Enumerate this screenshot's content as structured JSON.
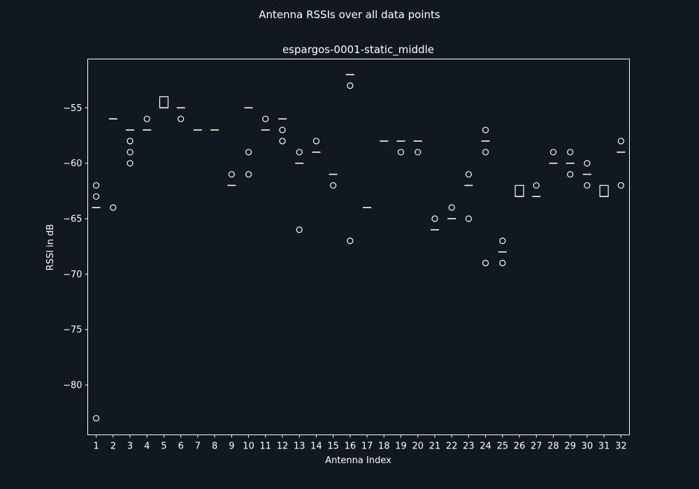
{
  "figure": {
    "suptitle": "Antenna RSSIs over all data points",
    "background_color": "#111820",
    "foreground_color": "#ffffff",
    "median_color": "#ffffcc"
  },
  "chart_data": {
    "type": "box",
    "title": "espargos-0001-static_middle",
    "xlabel": "Antenna Index",
    "ylabel": "RSSI in dB",
    "ylim": [
      -84.5,
      -50.6
    ],
    "yticks": [
      -80,
      -75,
      -70,
      -65,
      -60,
      -55
    ],
    "grid": false,
    "categories": [
      "1",
      "2",
      "3",
      "4",
      "5",
      "6",
      "7",
      "8",
      "9",
      "10",
      "11",
      "12",
      "13",
      "14",
      "15",
      "16",
      "17",
      "18",
      "19",
      "20",
      "21",
      "22",
      "23",
      "24",
      "25",
      "26",
      "27",
      "28",
      "29",
      "30",
      "31",
      "32"
    ],
    "boxes": [
      {
        "antenna": "1",
        "q1": -64,
        "median": -64,
        "q3": -64,
        "outliers": [
          -62,
          -63,
          -83
        ]
      },
      {
        "antenna": "2",
        "q1": -56,
        "median": -56,
        "q3": -56,
        "outliers": [
          -64
        ]
      },
      {
        "antenna": "3",
        "q1": -57,
        "median": -57,
        "q3": -57,
        "outliers": [
          -58,
          -59,
          -60
        ]
      },
      {
        "antenna": "4",
        "q1": -57,
        "median": -57,
        "q3": -57,
        "outliers": [
          -56
        ]
      },
      {
        "antenna": "5",
        "q1": -55,
        "median": -55,
        "q3": -54,
        "outliers": []
      },
      {
        "antenna": "6",
        "q1": -55,
        "median": -55,
        "q3": -55,
        "outliers": [
          -56
        ]
      },
      {
        "antenna": "7",
        "q1": -57,
        "median": -57,
        "q3": -57,
        "outliers": []
      },
      {
        "antenna": "8",
        "q1": -57,
        "median": -57,
        "q3": -57,
        "outliers": []
      },
      {
        "antenna": "9",
        "q1": -62,
        "median": -62,
        "q3": -62,
        "outliers": [
          -61
        ]
      },
      {
        "antenna": "10",
        "q1": -55,
        "median": -55,
        "q3": -55,
        "outliers": [
          -59,
          -61
        ]
      },
      {
        "antenna": "11",
        "q1": -57,
        "median": -57,
        "q3": -57,
        "outliers": [
          -56
        ]
      },
      {
        "antenna": "12",
        "q1": -56,
        "median": -56,
        "q3": -56,
        "outliers": [
          -57,
          -58
        ]
      },
      {
        "antenna": "13",
        "q1": -60,
        "median": -60,
        "q3": -60,
        "outliers": [
          -59,
          -66
        ]
      },
      {
        "antenna": "14",
        "q1": -59,
        "median": -59,
        "q3": -59,
        "outliers": [
          -58
        ]
      },
      {
        "antenna": "15",
        "q1": -61,
        "median": -61,
        "q3": -61,
        "outliers": [
          -62
        ]
      },
      {
        "antenna": "16",
        "q1": -52,
        "median": -52,
        "q3": -52,
        "outliers": [
          -53,
          -67
        ]
      },
      {
        "antenna": "17",
        "q1": -64,
        "median": -64,
        "q3": -64,
        "outliers": []
      },
      {
        "antenna": "18",
        "q1": -58,
        "median": -58,
        "q3": -58,
        "outliers": []
      },
      {
        "antenna": "19",
        "q1": -58,
        "median": -58,
        "q3": -58,
        "outliers": [
          -59
        ]
      },
      {
        "antenna": "20",
        "q1": -58,
        "median": -58,
        "q3": -58,
        "outliers": [
          -59
        ]
      },
      {
        "antenna": "21",
        "q1": -66,
        "median": -66,
        "q3": -66,
        "outliers": [
          -65
        ]
      },
      {
        "antenna": "22",
        "q1": -65,
        "median": -65,
        "q3": -65,
        "outliers": [
          -64
        ]
      },
      {
        "antenna": "23",
        "q1": -62,
        "median": -62,
        "q3": -62,
        "outliers": [
          -61,
          -65
        ]
      },
      {
        "antenna": "24",
        "q1": -58,
        "median": -58,
        "q3": -58,
        "outliers": [
          -57,
          -59,
          -69
        ]
      },
      {
        "antenna": "25",
        "q1": -68,
        "median": -68,
        "q3": -68,
        "outliers": [
          -67,
          -69
        ]
      },
      {
        "antenna": "26",
        "q1": -63,
        "median": -63,
        "q3": -62,
        "outliers": []
      },
      {
        "antenna": "27",
        "q1": -63,
        "median": -63,
        "q3": -63,
        "outliers": [
          -62
        ]
      },
      {
        "antenna": "28",
        "q1": -60,
        "median": -60,
        "q3": -60,
        "outliers": [
          -59
        ]
      },
      {
        "antenna": "29",
        "q1": -60,
        "median": -60,
        "q3": -60,
        "outliers": [
          -59,
          -61
        ]
      },
      {
        "antenna": "30",
        "q1": -61,
        "median": -61,
        "q3": -61,
        "outliers": [
          -60,
          -62
        ]
      },
      {
        "antenna": "31",
        "q1": -63,
        "median": -63,
        "q3": -62,
        "outliers": []
      },
      {
        "antenna": "32",
        "q1": -59,
        "median": -59,
        "q3": -59,
        "outliers": [
          -58,
          -62
        ]
      }
    ]
  }
}
